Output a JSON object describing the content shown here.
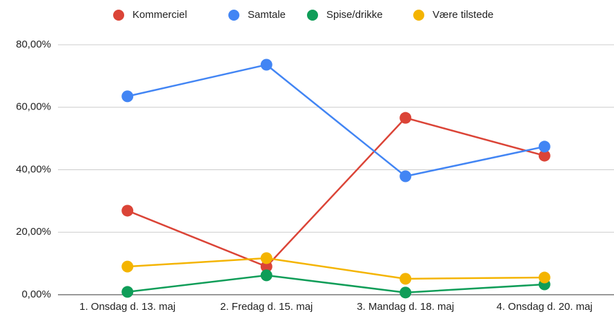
{
  "chart_data": {
    "type": "line",
    "categories": [
      "1. Onsdag d. 13. maj",
      "2. Fredag d. 15. maj",
      "3. Mandag d. 18. maj",
      "4. Onsdag d. 20. maj"
    ],
    "series": [
      {
        "name": "Kommerciel",
        "color": "#db4437",
        "values": [
          26.9,
          9.0,
          56.6,
          44.5
        ]
      },
      {
        "name": "Samtale",
        "color": "#4285f4",
        "values": [
          63.5,
          73.6,
          37.9,
          47.4
        ]
      },
      {
        "name": "Spise/drikke",
        "color": "#0f9d58",
        "values": [
          0.9,
          6.2,
          0.7,
          3.3
        ]
      },
      {
        "name": "Være tilstede",
        "color": "#f4b400",
        "values": [
          9.0,
          11.7,
          5.1,
          5.5
        ]
      }
    ],
    "ylim": [
      0,
      80
    ],
    "yticks": [
      {
        "value": 0,
        "label": "0,00%"
      },
      {
        "value": 20,
        "label": "20,00%"
      },
      {
        "value": 40,
        "label": "40,00%"
      },
      {
        "value": 60,
        "label": "60,00%"
      },
      {
        "value": 80,
        "label": "80,00%"
      }
    ],
    "grid": true,
    "legend": "top"
  }
}
